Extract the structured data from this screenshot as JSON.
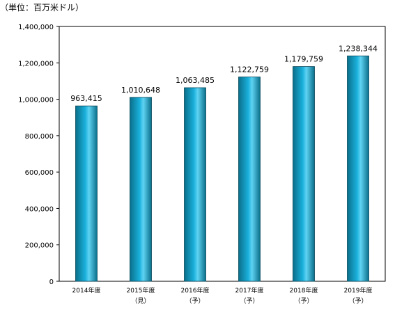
{
  "chart_data": {
    "type": "bar",
    "unit_label": "（単位：百万米ドル）",
    "categories": [
      "2014年度",
      "2015年度",
      "2016年度",
      "2017年度",
      "2018年度",
      "2019年度"
    ],
    "category_notes": [
      "",
      "（見）",
      "（予）",
      "（予）",
      "（予）",
      "（予）"
    ],
    "values": [
      963415,
      1010648,
      1063485,
      1122759,
      1179759,
      1238344
    ],
    "value_labels": [
      "963,415",
      "1,010,648",
      "1,063,485",
      "1,122,759",
      "1,179,759",
      "1,238,344"
    ],
    "ylim": [
      0,
      1400000
    ],
    "yticks": [
      0,
      200000,
      400000,
      600000,
      800000,
      1000000,
      1200000,
      1400000
    ],
    "ytick_labels": [
      "0",
      "200,000",
      "400,000",
      "600,000",
      "800,000",
      "1,000,000",
      "1,200,000",
      "1,400,000"
    ],
    "grid": false,
    "legend": "none",
    "colors": {
      "bar_dark": "#0a6f8a",
      "bar_mid": "#1ab0dc",
      "bar_light": "#5fd3f3",
      "axis": "#000000",
      "frame": "#000000"
    }
  }
}
